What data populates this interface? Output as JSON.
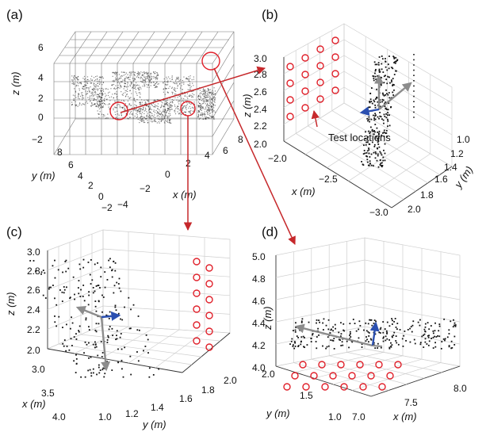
{
  "panels": {
    "a": {
      "label": "(a)",
      "xlabel": "x (m)",
      "ylabel": "y (m)",
      "zlabel": "z (m)",
      "xticks": [
        "−4",
        "−2",
        "0",
        "2",
        "4",
        "6",
        "8"
      ],
      "yticks": [
        "8",
        "6",
        "4",
        "2",
        "0",
        "−2"
      ],
      "zticks": [
        "6",
        "4",
        "2",
        "0",
        "−2"
      ]
    },
    "b": {
      "label": "(b)",
      "xlabel": "x (m)",
      "ylabel": "y (m)",
      "zlabel": "z (m)",
      "xticks": [
        "−2.0",
        "−2.5",
        "−3.0"
      ],
      "yticks": [
        "1.0",
        "1.2",
        "1.4",
        "1.6",
        "1.8",
        "2.0"
      ],
      "zticks": [
        "3.0",
        "2.8",
        "2.6",
        "2.4",
        "2.2",
        "2.0"
      ],
      "annotation": "Test locations"
    },
    "c": {
      "label": "(c)",
      "xlabel": "x (m)",
      "ylabel": "y (m)",
      "zlabel": "z (m)",
      "xticks": [
        "3.0",
        "3.5",
        "4.0"
      ],
      "yticks": [
        "1.0",
        "1.2",
        "1.4",
        "1.6",
        "1.8",
        "2.0"
      ],
      "zticks": [
        "3.0",
        "2.8",
        "2.6",
        "2.4",
        "2.2",
        "2.0"
      ]
    },
    "d": {
      "label": "(d)",
      "xlabel": "x (m)",
      "ylabel": "y (m)",
      "zlabel": "z (m)",
      "xticks": [
        "7.0",
        "7.5",
        "8.0"
      ],
      "yticks": [
        "2.0",
        "1.5",
        "1.0"
      ],
      "zticks": [
        "5.0",
        "4.8",
        "4.6",
        "4.4",
        "4.2",
        "4.0"
      ]
    }
  },
  "colors": {
    "marker": "#e0202a",
    "arrow": "#c6282b",
    "pose_gray": "#8c8c8c",
    "pose_blue": "#2a4fb0",
    "points": "#111111"
  }
}
